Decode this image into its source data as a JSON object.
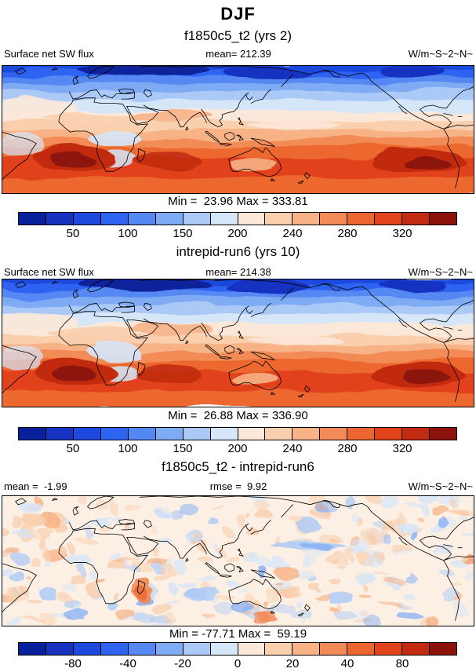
{
  "header": {
    "season": "DJF"
  },
  "panels": [
    {
      "case_title": "f1850c5_t2 (yrs 2)",
      "field_label": "Surface net SW flux",
      "stat_center": "mean= 212.39",
      "units": "W/m~S~2~N~",
      "minmax": "Min =  23.96 Max = 333.81",
      "ticks": [
        "50",
        "100",
        "150",
        "200",
        "240",
        "280",
        "320"
      ]
    },
    {
      "case_title": "intrepid-run6 (yrs 10)",
      "field_label": "Surface net SW flux",
      "stat_center": "mean= 214.38",
      "units": "W/m~S~2~N~",
      "minmax": "Min =  26.88 Max = 336.90",
      "ticks": [
        "50",
        "100",
        "150",
        "200",
        "240",
        "280",
        "320"
      ]
    },
    {
      "case_title": "f1850c5_t2 - intrepid-run6",
      "field_label": "mean =  -1.99",
      "stat_center": "rmse =  9.92",
      "units": "W/m~S~2~N~",
      "minmax": "Min = -77.71 Max =  59.19",
      "ticks": [
        "-80",
        "-40",
        "-20",
        "0",
        "20",
        "40",
        "80"
      ]
    }
  ],
  "colorbar_colors": [
    "#08209b",
    "#1733c0",
    "#1e49dd",
    "#2f63f2",
    "#5588f3",
    "#7fabf5",
    "#abc9f7",
    "#d5e6f9",
    "#fbe8d9",
    "#f9cfae",
    "#f7b286",
    "#f28b57",
    "#ec672f",
    "#e1431b",
    "#c22b11",
    "#8c130b"
  ],
  "diff_map_bg": "#fcefe4",
  "chart_data": {
    "type": "heatmap",
    "subtype": "global lat-lon map comparison (model diagnostics)",
    "season": "DJF",
    "variable": "Surface net SW flux",
    "units_label": "W/m~S~2~N~",
    "legend_position": "horizontal colorbar below each map",
    "grid": false,
    "panels": [
      {
        "name": "f1850c5_t2 (yrs 2)",
        "mean": 212.39,
        "min": 23.96,
        "max": 333.81,
        "colorbar_tick_labels": [
          50,
          100,
          150,
          200,
          240,
          280,
          320
        ]
      },
      {
        "name": "intrepid-run6 (yrs 10)",
        "mean": 214.38,
        "min": 26.88,
        "max": 336.9,
        "colorbar_tick_labels": [
          50,
          100,
          150,
          200,
          240,
          280,
          320
        ]
      },
      {
        "name": "f1850c5_t2 - intrepid-run6",
        "mean": -1.99,
        "rmse": 9.92,
        "min": -77.71,
        "max": 59.19,
        "colorbar_tick_labels": [
          -80,
          -40,
          -20,
          0,
          20,
          40,
          80
        ]
      }
    ],
    "colorbar_colors": [
      "#08209b",
      "#1733c0",
      "#1e49dd",
      "#2f63f2",
      "#5588f3",
      "#7fabf5",
      "#abc9f7",
      "#d5e6f9",
      "#fbe8d9",
      "#f9cfae",
      "#f7b286",
      "#f28b57",
      "#ec672f",
      "#e1431b",
      "#c22b11",
      "#8c130b"
    ]
  }
}
